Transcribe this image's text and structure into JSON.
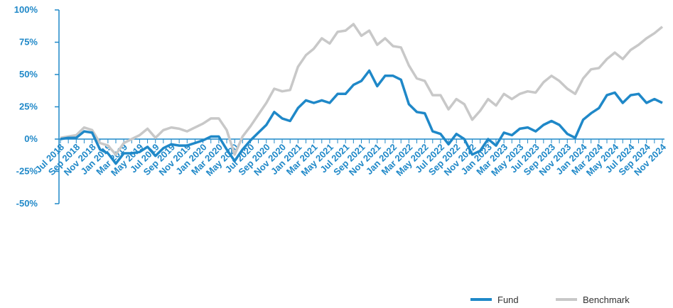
{
  "chart_data": {
    "type": "line",
    "categories": [
      "Jul 2018",
      null,
      "Sep 2018",
      null,
      "Nov 2018",
      null,
      "Jan 2019",
      null,
      "Mar 2019",
      null,
      "May 2019",
      null,
      "Jul 2019",
      null,
      "Sep 2019",
      null,
      "Nov 2019",
      null,
      "Jan 2020",
      null,
      "Mar 2020",
      null,
      "May 2020",
      null,
      "Jul 2020",
      null,
      "Sep 2020",
      null,
      "Nov 2020",
      null,
      "Jan 2021",
      null,
      "Mar 2021",
      null,
      "May 2021",
      null,
      "Jul 2021",
      null,
      "Sep 2021",
      null,
      "Nov 2021",
      null,
      "Jan 2022",
      null,
      "Mar 2022",
      null,
      "May 2022",
      null,
      "Jul 2022",
      null,
      "Sep 2022",
      null,
      "Nov 2022",
      null,
      "Jan 2023",
      null,
      "Mar 2023",
      null,
      "May 2023",
      null,
      "Jul 2023",
      null,
      "Sep 2023",
      null,
      "Nov 2023",
      null,
      "Jan 2024",
      null,
      "Mar 2024",
      null,
      "May 2024",
      null,
      "Jul 2024",
      null,
      "Sep 2024",
      null,
      "Nov 2024"
    ],
    "series": [
      {
        "name": "Fund",
        "color": "#1f88c8",
        "values": [
          0,
          1,
          1,
          6,
          5,
          -8,
          -11,
          -19,
          -11,
          -11,
          -10,
          -6,
          -13,
          -7,
          -4,
          -5,
          -5,
          -3,
          -1,
          2,
          2,
          -8,
          -17,
          -8,
          -1,
          5,
          11,
          21,
          16,
          14,
          24,
          30,
          28,
          30,
          28,
          35,
          35,
          42,
          45,
          53,
          41,
          49,
          49,
          46,
          27,
          21,
          20,
          6,
          4,
          -4,
          4,
          0,
          -12,
          -9,
          0,
          -5,
          5,
          3,
          8,
          9,
          6,
          11,
          14,
          11,
          4,
          1,
          15,
          20,
          24,
          34,
          36,
          28,
          34,
          35,
          28,
          31,
          28
        ]
      },
      {
        "name": "Benchmark",
        "color": "#c8c8c8",
        "values": [
          1,
          2,
          3,
          9,
          7,
          -3,
          -5,
          -12,
          -3,
          0,
          3,
          8,
          1,
          7,
          9,
          8,
          6,
          9,
          12,
          16,
          16,
          7,
          -12,
          2,
          10,
          19,
          28,
          39,
          37,
          38,
          56,
          65,
          70,
          78,
          74,
          83,
          84,
          89,
          80,
          84,
          73,
          78,
          72,
          71,
          57,
          47,
          45,
          34,
          34,
          23,
          31,
          27,
          15,
          22,
          31,
          26,
          35,
          31,
          35,
          37,
          36,
          44,
          49,
          45,
          39,
          35,
          47,
          54,
          55,
          62,
          67,
          62,
          69,
          73,
          78,
          82,
          87
        ]
      }
    ],
    "ylim": [
      -50,
      100
    ],
    "yticks": [
      {
        "value": -50,
        "label": "-50%"
      },
      {
        "value": -25,
        "label": "-25%"
      },
      {
        "value": 0,
        "label": "0%"
      },
      {
        "value": 25,
        "label": "25%"
      },
      {
        "value": 50,
        "label": "50%"
      },
      {
        "value": 75,
        "label": "75%"
      },
      {
        "value": 100,
        "label": "100%"
      }
    ],
    "grid": false,
    "legend": "bottom-right"
  }
}
